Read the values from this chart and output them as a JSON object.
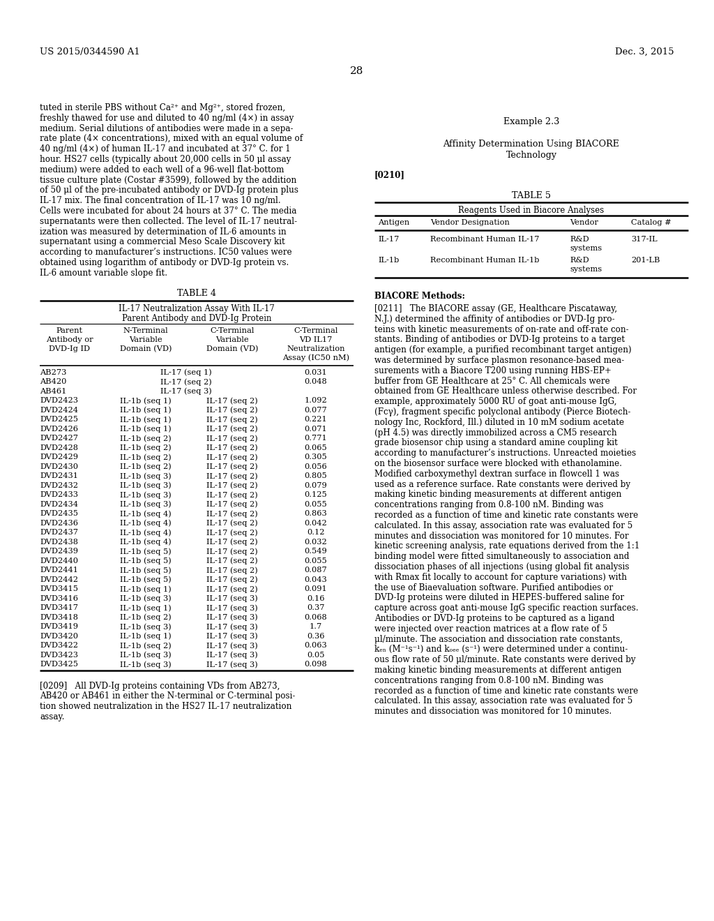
{
  "page_number": "28",
  "patent_number": "US 2015/0344590 A1",
  "patent_date": "Dec. 3, 2015",
  "background_color": "#ffffff",
  "text_color": "#000000",
  "left_column": {
    "paragraph1": "tuted in sterile PBS without Ca²⁺ and Mg²⁺, stored frozen,\nfreshly thawed for use and diluted to 40 ng/ml (4×) in assay\nmedium. Serial dilutions of antibodies were made in a sepa-\nrate plate (4× concentrations), mixed with an equal volume of\n40 ng/ml (4×) of human IL-17 and incubated at 37° C. for 1\nhour. HS27 cells (typically about 20,000 cells in 50 μl assay\nmedium) were added to each well of a 96-well flat-bottom\ntissue culture plate (Costar #3599), followed by the addition\nof 50 μl of the pre-incubated antibody or DVD-Ig protein plus\nIL-17 mix. The final concentration of IL-17 was 10 ng/ml.\nCells were incubated for about 24 hours at 37° C. The media\nsupernatants were then collected. The level of IL-17 neutral-\nization was measured by determination of IL-6 amounts in\nsupernatant using a commercial Meso Scale Discovery kit\naccording to manufacturer’s instructions. IC50 values were\nobtained using logarithm of antibody or DVD-Ig protein vs.\nIL-6 amount variable slope fit.",
    "table4_title": "TABLE 4",
    "table4_subtitle1": "IL-17 Neutralization Assay With IL-17",
    "table4_subtitle2": "Parent Antibody and DVD-Ig Protein",
    "table4_rows": [
      [
        "AB273",
        "IL-17 (seq 1)",
        "",
        "0.031"
      ],
      [
        "AB420",
        "IL-17 (seq 2)",
        "",
        "0.048"
      ],
      [
        "AB461",
        "IL-17 (seq 3)",
        "",
        ""
      ],
      [
        "DVD2423",
        "IL-1b (seq 1)",
        "IL-17 (seq 2)",
        "1.092"
      ],
      [
        "DVD2424",
        "IL-1b (seq 1)",
        "IL-17 (seq 2)",
        "0.077"
      ],
      [
        "DVD2425",
        "IL-1b (seq 1)",
        "IL-17 (seq 2)",
        "0.221"
      ],
      [
        "DVD2426",
        "IL-1b (seq 1)",
        "IL-17 (seq 2)",
        "0.071"
      ],
      [
        "DVD2427",
        "IL-1b (seq 2)",
        "IL-17 (seq 2)",
        "0.771"
      ],
      [
        "DVD2428",
        "IL-1b (seq 2)",
        "IL-17 (seq 2)",
        "0.065"
      ],
      [
        "DVD2429",
        "IL-1b (seq 2)",
        "IL-17 (seq 2)",
        "0.305"
      ],
      [
        "DVD2430",
        "IL-1b (seq 2)",
        "IL-17 (seq 2)",
        "0.056"
      ],
      [
        "DVD2431",
        "IL-1b (seq 3)",
        "IL-17 (seq 2)",
        "0.805"
      ],
      [
        "DVD2432",
        "IL-1b (seq 3)",
        "IL-17 (seq 2)",
        "0.079"
      ],
      [
        "DVD2433",
        "IL-1b (seq 3)",
        "IL-17 (seq 2)",
        "0.125"
      ],
      [
        "DVD2434",
        "IL-1b (seq 3)",
        "IL-17 (seq 2)",
        "0.055"
      ],
      [
        "DVD2435",
        "IL-1b (seq 4)",
        "IL-17 (seq 2)",
        "0.863"
      ],
      [
        "DVD2436",
        "IL-1b (seq 4)",
        "IL-17 (seq 2)",
        "0.042"
      ],
      [
        "DVD2437",
        "IL-1b (seq 4)",
        "IL-17 (seq 2)",
        "0.12"
      ],
      [
        "DVD2438",
        "IL-1b (seq 4)",
        "IL-17 (seq 2)",
        "0.032"
      ],
      [
        "DVD2439",
        "IL-1b (seq 5)",
        "IL-17 (seq 2)",
        "0.549"
      ],
      [
        "DVD2440",
        "IL-1b (seq 5)",
        "IL-17 (seq 2)",
        "0.055"
      ],
      [
        "DVD2441",
        "IL-1b (seq 5)",
        "IL-17 (seq 2)",
        "0.087"
      ],
      [
        "DVD2442",
        "IL-1b (seq 5)",
        "IL-17 (seq 2)",
        "0.043"
      ],
      [
        "DVD3415",
        "IL-1b (seq 1)",
        "IL-17 (seq 2)",
        "0.091"
      ],
      [
        "DVD3416",
        "IL-1b (seq 3)",
        "IL-17 (seq 3)",
        "0.16"
      ],
      [
        "DVD3417",
        "IL-1b (seq 1)",
        "IL-17 (seq 3)",
        "0.37"
      ],
      [
        "DVD3418",
        "IL-1b (seq 2)",
        "IL-17 (seq 3)",
        "0.068"
      ],
      [
        "DVD3419",
        "IL-1b (seq 3)",
        "IL-17 (seq 3)",
        "1.7"
      ],
      [
        "DVD3420",
        "IL-1b (seq 1)",
        "IL-17 (seq 3)",
        "0.36"
      ],
      [
        "DVD3422",
        "IL-1b (seq 2)",
        "IL-17 (seq 3)",
        "0.063"
      ],
      [
        "DVD3423",
        "IL-1b (seq 3)",
        "IL-17 (seq 3)",
        "0.05"
      ],
      [
        "DVD3425",
        "IL-1b (seq 3)",
        "IL-17 (seq 3)",
        "0.098"
      ]
    ],
    "paragraph2_tag": "[0209]",
    "paragraph2_body": "   All DVD-Ig proteins containing VDs from AB273,\nAB420 or AB461 in either the N-terminal or C-terminal posi-\ntion showed neutralization in the HS27 IL-17 neutralization\nassay."
  },
  "right_column": {
    "example_title": "Example 2.3",
    "example_subtitle1": "Affinity Determination Using BIACORE",
    "example_subtitle2": "Technology",
    "paragraph_tag1": "[0210]",
    "table5_title": "TABLE 5",
    "table5_subtitle": "Reagents Used in Biacore Analyses",
    "table5_col_headers": [
      "Antigen",
      "Vendor Designation",
      "Vendor",
      "Catalog #"
    ],
    "table5_rows": [
      [
        "IL-17",
        "Recombinant Human IL-17",
        "R&D\nsystems",
        "317-IL"
      ],
      [
        "IL-1b",
        "Recombinant Human IL-1b",
        "R&D\nsystems",
        "201-LB"
      ]
    ],
    "biacore_header": "BIACORE Methods:",
    "paragraph_tag2": "[0211]",
    "paragraph2_body": "   The BIACORE assay (GE, Healthcare Piscataway,\nN.J.) determined the affinity of antibodies or DVD-Ig pro-\nteins with kinetic measurements of on-rate and off-rate con-\nstants. Binding of antibodies or DVD-Ig proteins to a target\nantigen (for example, a purified recombinant target antigen)\nwas determined by surface plasmon resonance-based mea-\nsurements with a Biacore T200 using running HBS-EP+\nbuffer from GE Healthcare at 25° C. All chemicals were\nobtained from GE Healthcare unless otherwise described. For\nexample, approximately 5000 RU of goat anti-mouse IgG,\n(Fcγ), fragment specific polyclonal antibody (Pierce Biotech-\nnology Inc, Rockford, Ill.) diluted in 10 mM sodium acetate\n(pH 4.5) was directly immobilized across a CM5 research\ngrade biosensor chip using a standard amine coupling kit\naccording to manufacturer’s instructions. Unreacted moieties\non the biosensor surface were blocked with ethanolamine.\nModified carboxymethyl dextran surface in flowcell 1 was\nused as a reference surface. Rate constants were derived by\nmaking kinetic binding measurements at different antigen\nconcentrations ranging from 0.8-100 nM. Binding was\nrecorded as a function of time and kinetic rate constants were\ncalculated. In this assay, association rate was evaluated for 5\nminutes and dissociation was monitored for 10 minutes. For\nkinetic screening analysis, rate equations derived from the 1:1\nbinding model were fitted simultaneously to association and\ndissociation phases of all injections (using global fit analysis\nwith Rmax fit locally to account for capture variations) with\nthe use of Biaevaluation software. Purified antibodies or\nDVD-Ig proteins were diluted in HEPES-buffered saline for\ncapture across goat anti-mouse IgG specific reaction surfaces.\nAntibodies or DVD-Ig proteins to be captured as a ligand\nwere injected over reaction matrices at a flow rate of 5\nμl/minute. The association and dissociation rate constants,\nkₑₙ (M⁻¹s⁻¹) and kₒₑₑ (s⁻¹) were determined under a continu-\nous flow rate of 50 μl/minute. Rate constants were derived by\nmaking kinetic binding measurements at different antigen\nconcentrations ranging from 0.8-100 nM. Binding was\nrecorded as a function of time and kinetic rate constants were\ncalculated. In this assay, association rate was evaluated for 5\nminutes and dissociation was monitored for 10 minutes."
  }
}
